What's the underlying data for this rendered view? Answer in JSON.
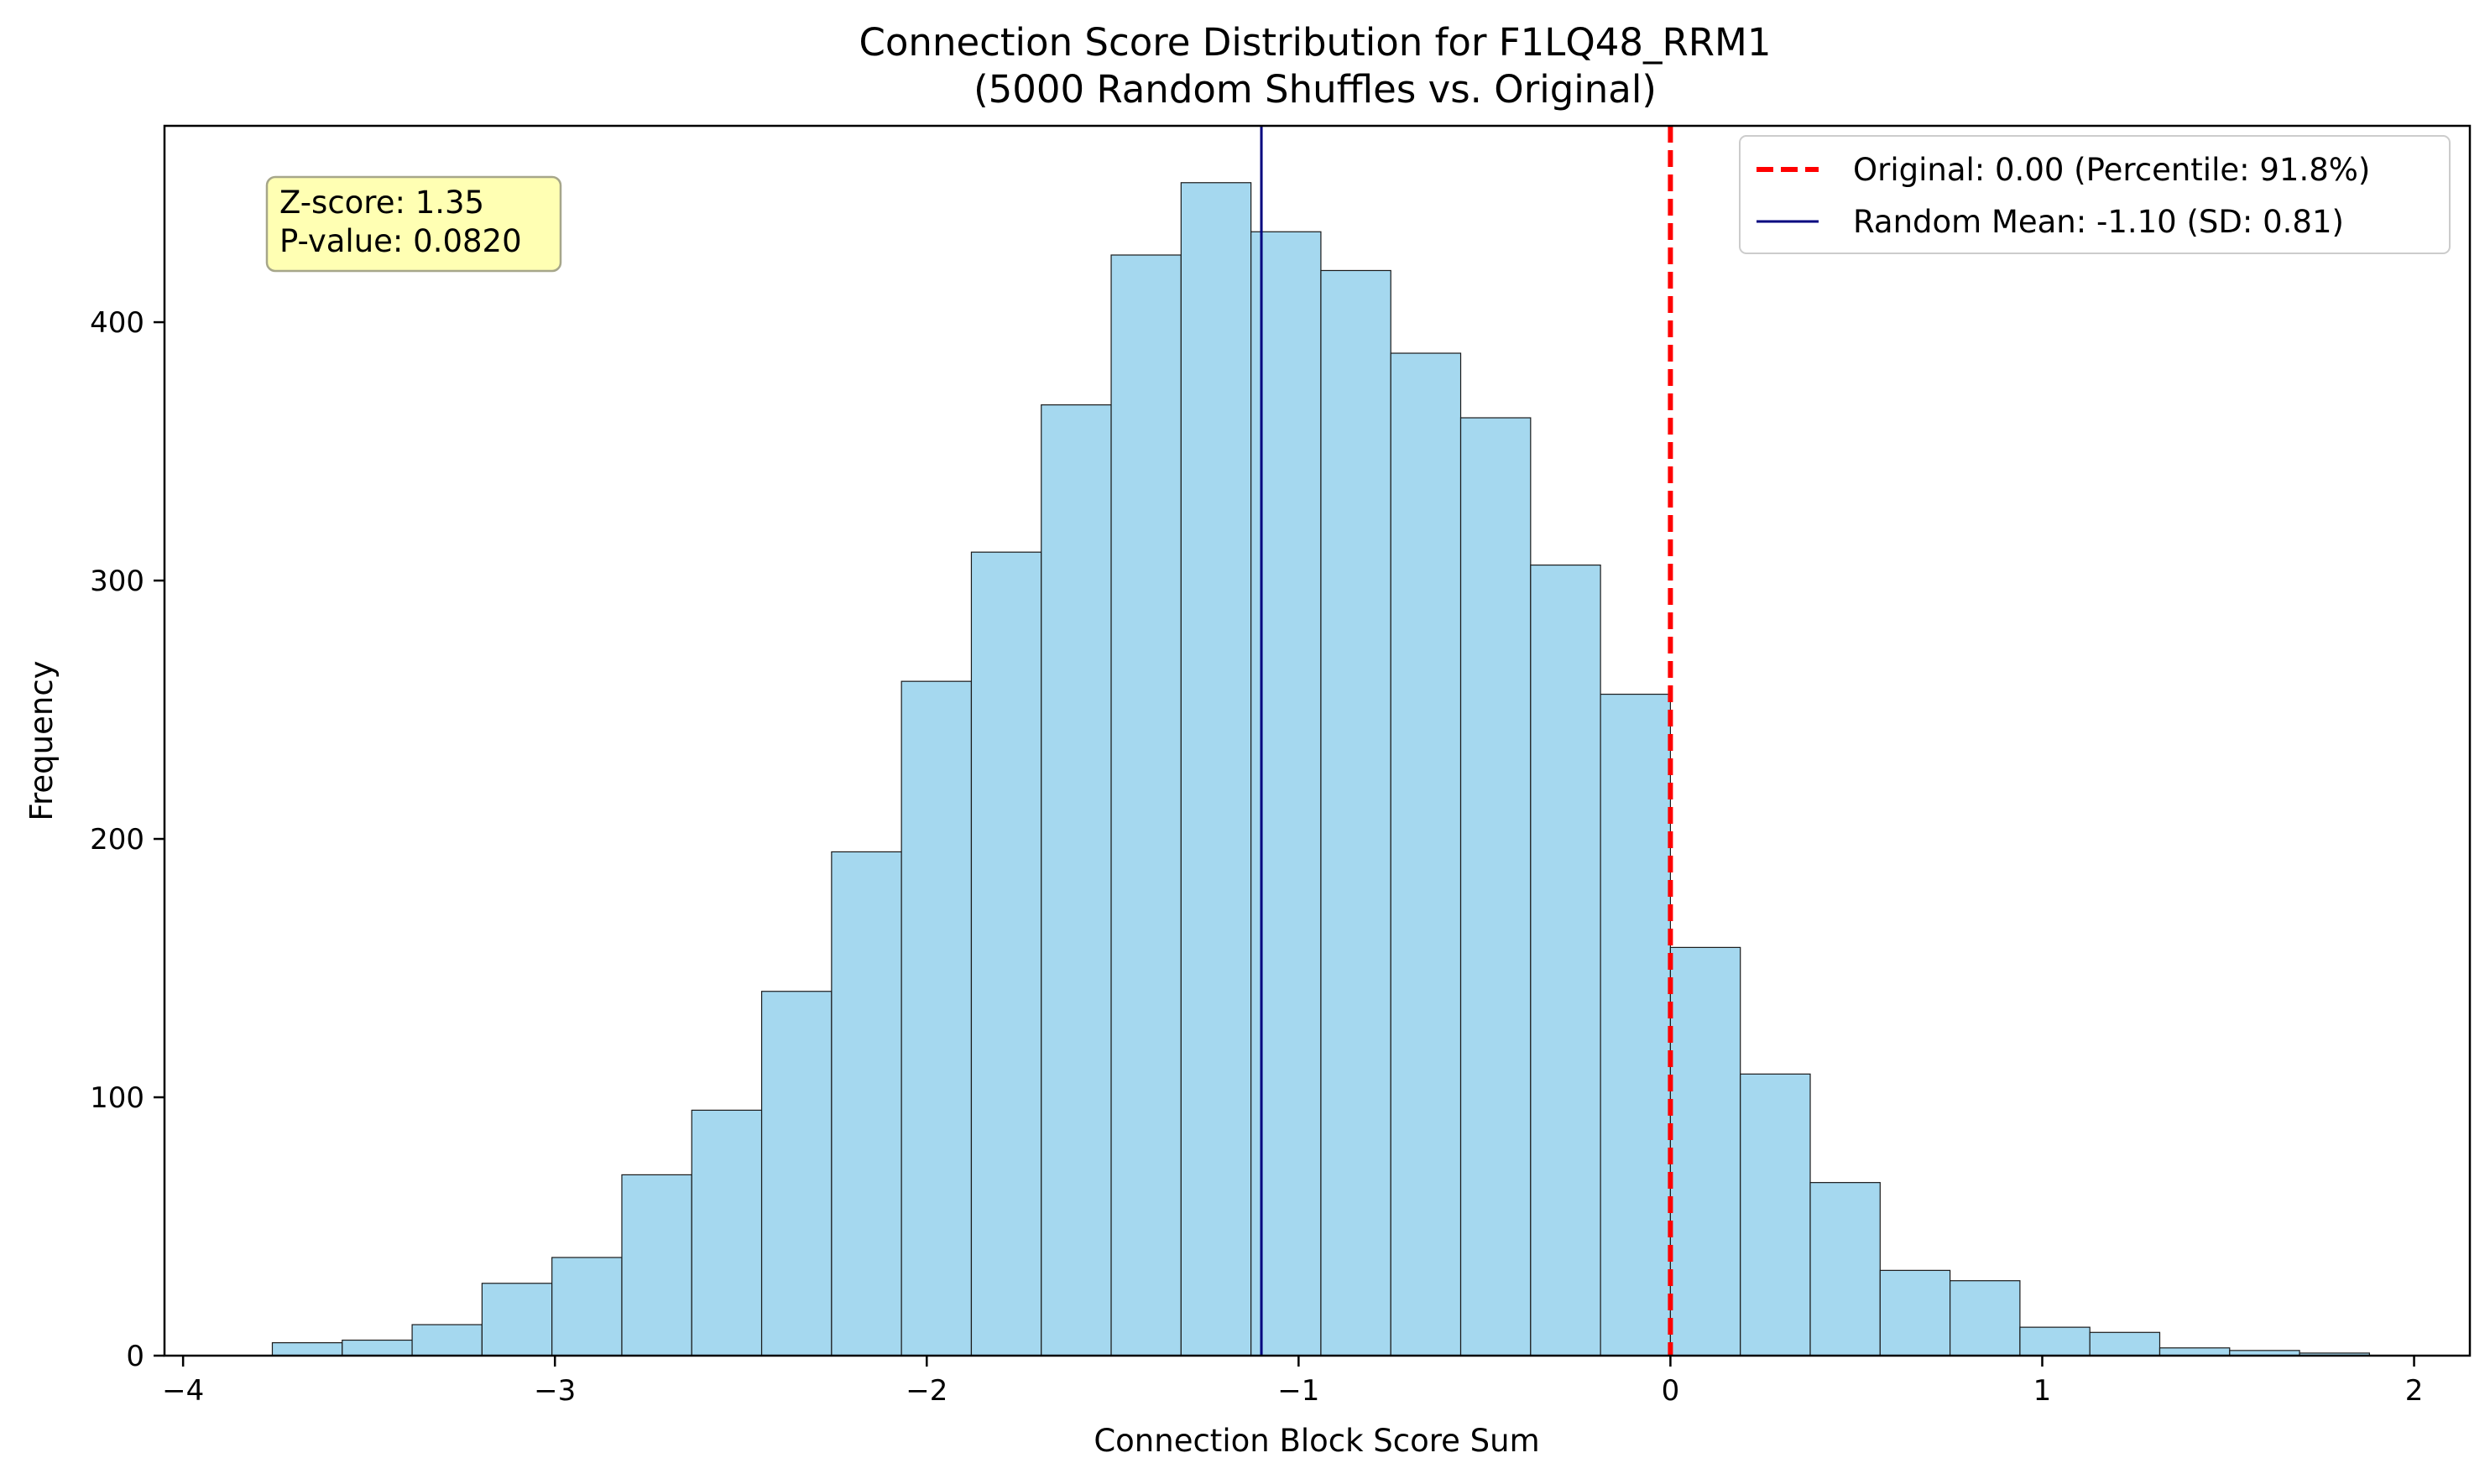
{
  "chart_data": {
    "type": "bar",
    "title": "Connection Score Distribution for F1LQ48_RRM1",
    "subtitle": "(5000 Random Shuffles vs. Original)",
    "xlabel": "Connection Block Score Sum",
    "ylabel": "Frequency",
    "xlim": [
      -4.05,
      2.15
    ],
    "ylim": [
      0,
      476
    ],
    "xticks": [
      -4,
      -3,
      -2,
      -1,
      0,
      1,
      2
    ],
    "xtick_labels": [
      "−4",
      "−3",
      "−2",
      "−1",
      "0",
      "1",
      "2"
    ],
    "yticks": [
      0,
      100,
      200,
      300,
      400
    ],
    "ytick_labels": [
      "0",
      "100",
      "200",
      "300",
      "400"
    ],
    "grid": false,
    "bins": {
      "edges": [
        -3.76,
        -3.572,
        -3.384,
        -3.196,
        -3.008,
        -2.82,
        -2.632,
        -2.444,
        -2.256,
        -2.068,
        -1.88,
        -1.692,
        -1.504,
        -1.316,
        -1.128,
        -0.94,
        -0.752,
        -0.564,
        -0.376,
        -0.188,
        0.0,
        0.188,
        0.376,
        0.564,
        0.752,
        0.94,
        1.128,
        1.316,
        1.504,
        1.692,
        1.88
      ],
      "counts": [
        5,
        6,
        12,
        28,
        38,
        70,
        95,
        141,
        195,
        261,
        311,
        368,
        426,
        454,
        435,
        420,
        388,
        363,
        306,
        256,
        158,
        109,
        67,
        33,
        29,
        11,
        9,
        3,
        2,
        1
      ]
    },
    "bar_color": "#a5d8ef",
    "bar_edge_color": "#1a1a1a",
    "lines": [
      {
        "name": "Original: 0.00 (Percentile: 91.8%)",
        "x": 0.0,
        "color": "#ff0000",
        "style": "dashed"
      },
      {
        "name": "Random Mean: -1.10 (SD: 0.81)",
        "x": -1.1,
        "color": "#00007f",
        "style": "solid"
      }
    ],
    "legend_position": "top-right",
    "annotation": {
      "lines": [
        "Z-score: 1.35",
        "P-value: 0.0820"
      ],
      "position": "top-left",
      "background": "#ffffb3",
      "border": "#a6a68a"
    }
  }
}
